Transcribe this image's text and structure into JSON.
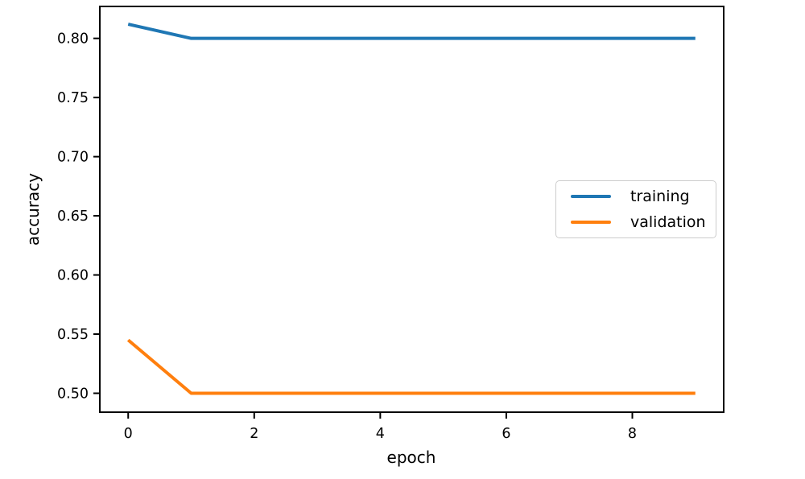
{
  "chart_data": {
    "type": "line",
    "title": "",
    "xlabel": "epoch",
    "ylabel": "accuracy",
    "x": [
      0,
      1,
      2,
      3,
      4,
      5,
      6,
      7,
      8,
      9
    ],
    "series": [
      {
        "name": "training",
        "color": "#1f77b4",
        "values": [
          0.812,
          0.8,
          0.8,
          0.8,
          0.8,
          0.8,
          0.8,
          0.8,
          0.8,
          0.8
        ]
      },
      {
        "name": "validation",
        "color": "#ff7f0e",
        "values": [
          0.545,
          0.5,
          0.5,
          0.5,
          0.5,
          0.5,
          0.5,
          0.5,
          0.5,
          0.5
        ]
      }
    ],
    "xticks": [
      0,
      2,
      4,
      6,
      8
    ],
    "yticks": [
      0.5,
      0.55,
      0.6,
      0.65,
      0.7,
      0.75,
      0.8
    ],
    "ytick_labels": [
      "0.50",
      "0.55",
      "0.60",
      "0.65",
      "0.70",
      "0.75",
      "0.80"
    ],
    "xlim": [
      -0.45,
      9.45
    ],
    "ylim": [
      0.484,
      0.827
    ],
    "grid": false,
    "legend_position": "center right",
    "line_width": 4,
    "colors": {
      "background": "#ffffff",
      "spine": "#000000",
      "tick": "#000000"
    }
  }
}
